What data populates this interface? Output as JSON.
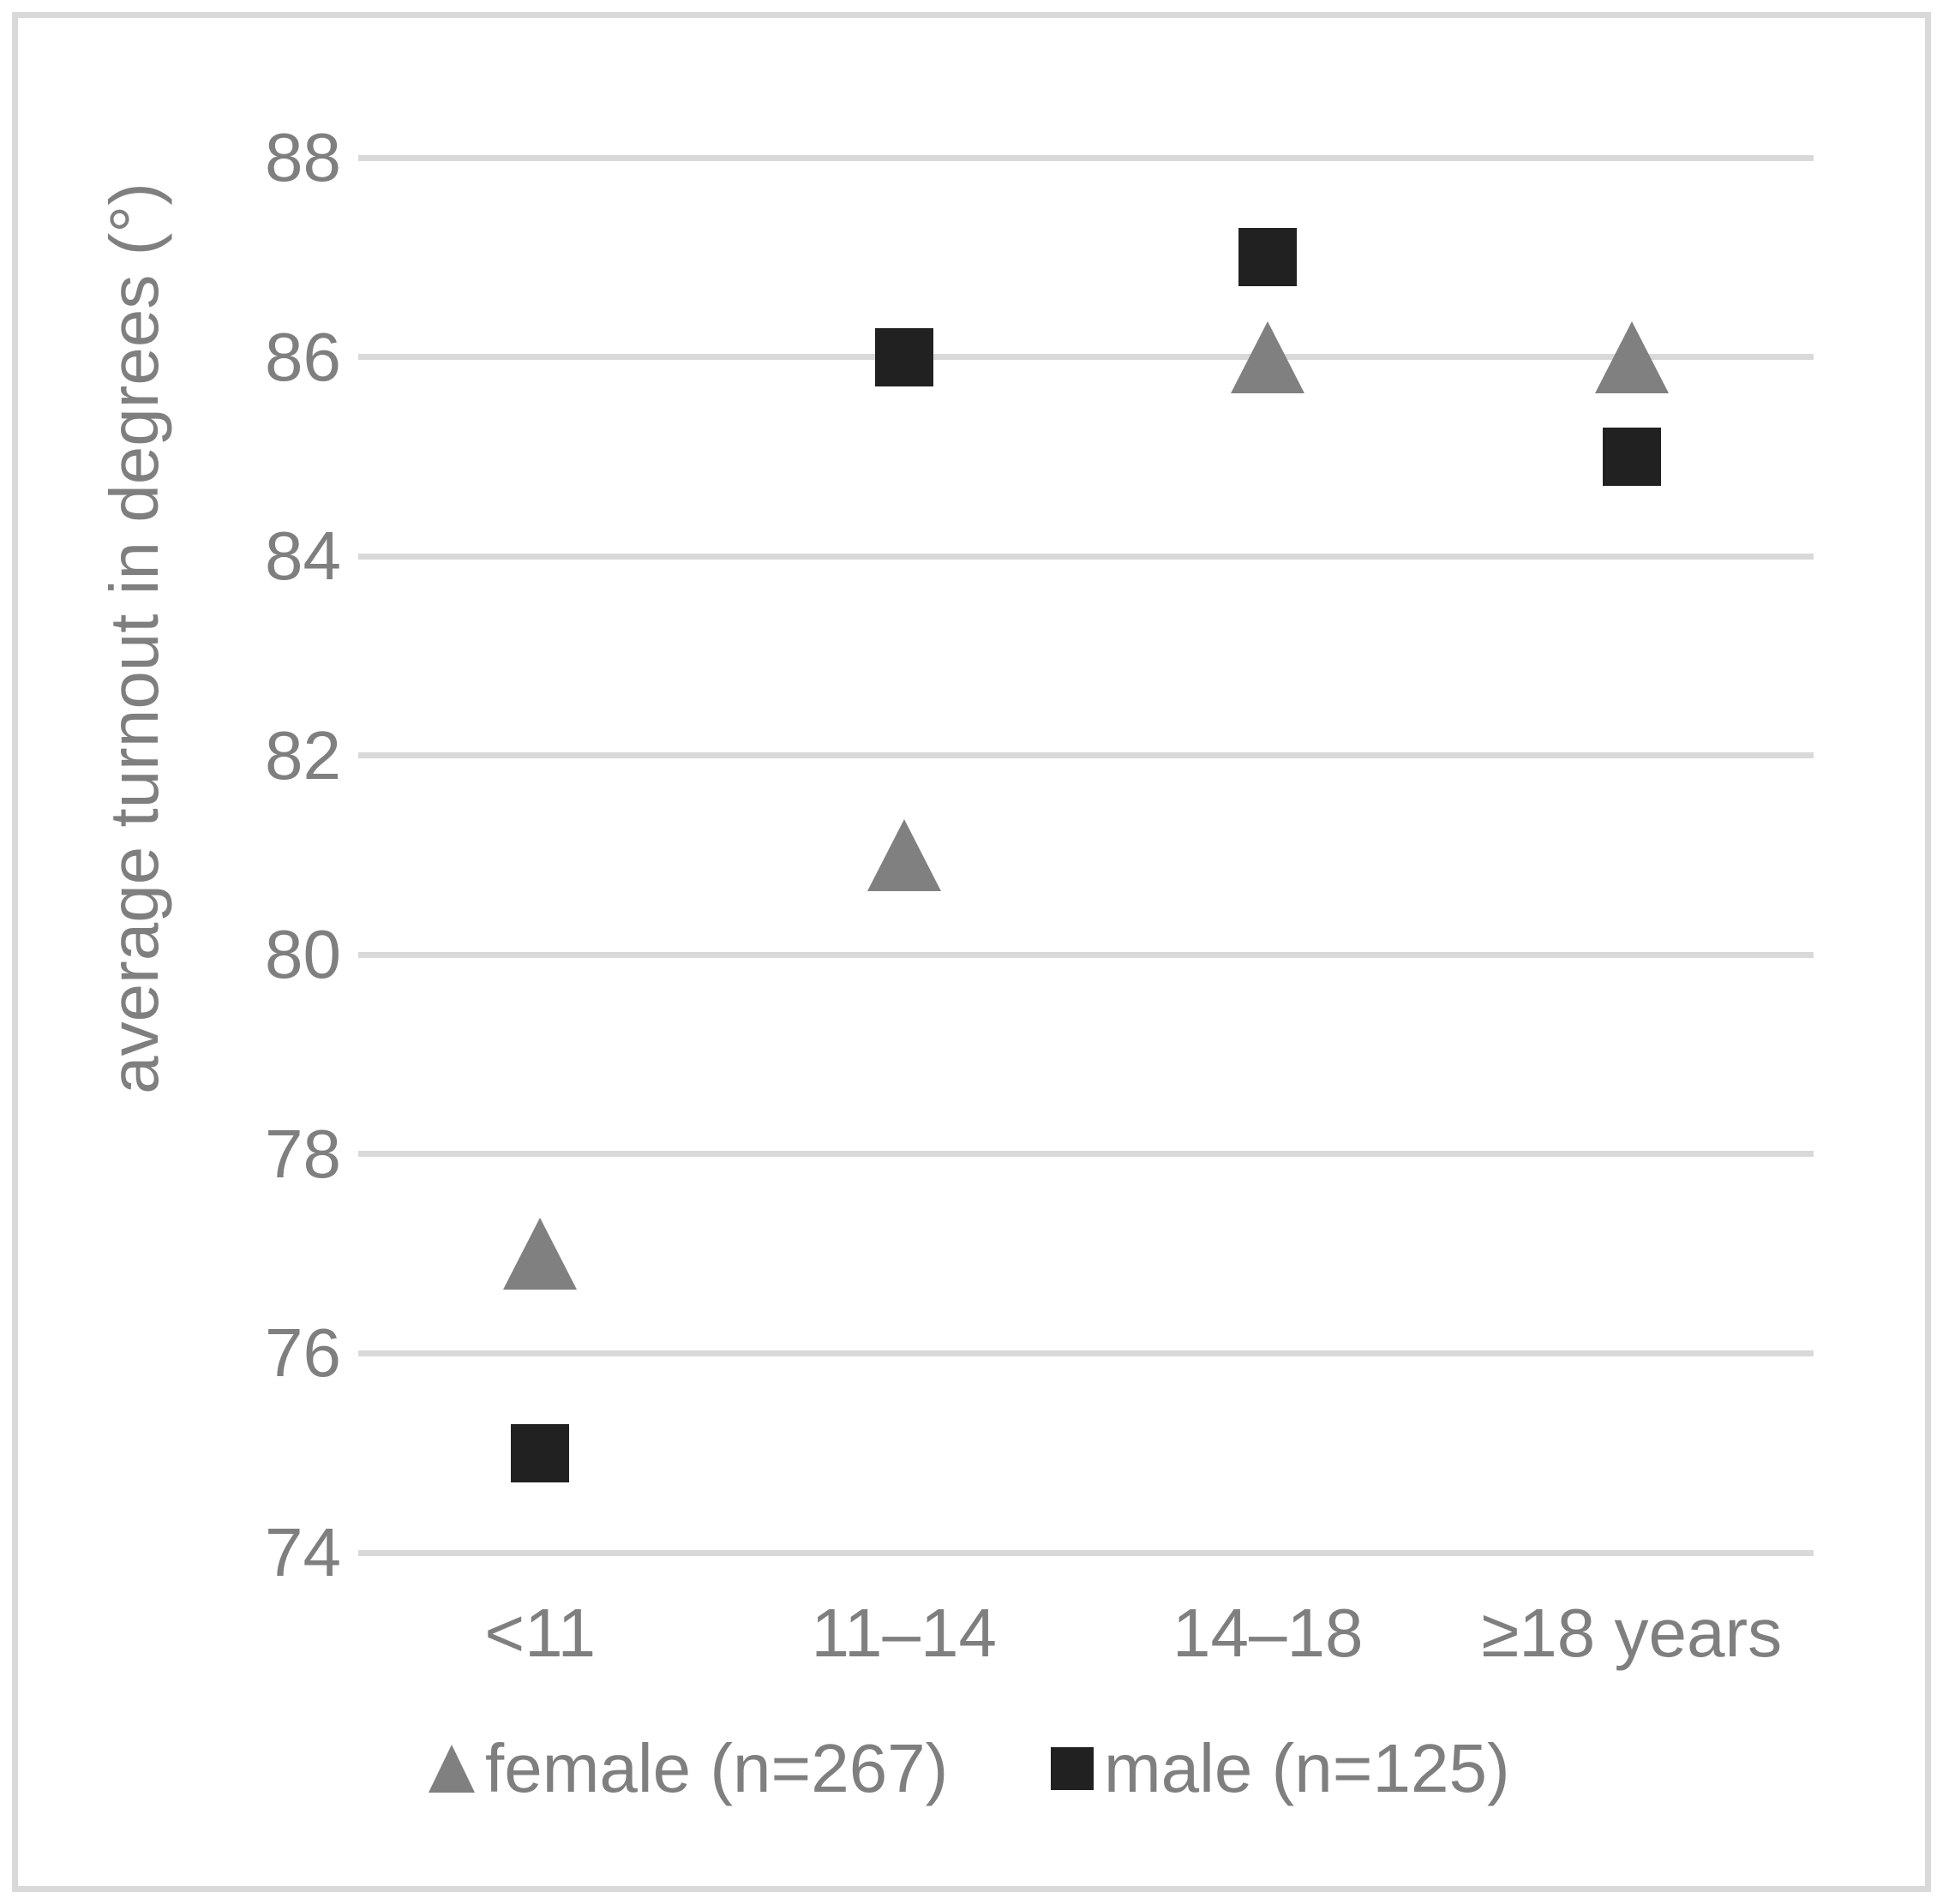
{
  "chart_data": {
    "type": "scatter",
    "title": "",
    "xlabel": "",
    "ylabel": "average turnout in degrees (°)",
    "categories": [
      "<11",
      "11–14",
      "14–18",
      "≥18 years"
    ],
    "y_ticks": [
      74,
      76,
      78,
      80,
      82,
      84,
      86,
      88
    ],
    "ylim": [
      74,
      88
    ],
    "grid": "horizontal",
    "gridline_color": "#d9d9d9",
    "text_color": "#7f7f7f",
    "legend_position": "bottom",
    "series": [
      {
        "name": "female (n=267)",
        "marker": "triangle",
        "color": "#808080",
        "values": [
          77,
          81,
          86,
          86
        ]
      },
      {
        "name": "male (n=125)",
        "marker": "square",
        "color": "#212121",
        "values": [
          75,
          86,
          87,
          85
        ]
      }
    ]
  }
}
